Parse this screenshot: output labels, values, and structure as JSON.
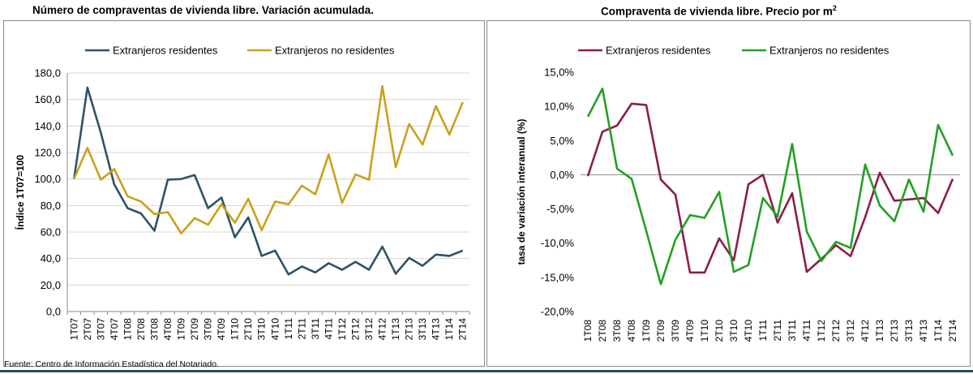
{
  "source": "Fuente: Centro de Información Estadística del Notariado.",
  "charts": [
    {
      "title": "Número de compraventas de vivienda libre. Variación acumulada.",
      "chart_data": {
        "type": "line",
        "ylabel": "Índice 1T07=100",
        "ylim": [
          0,
          180
        ],
        "yticks": [
          "0,0",
          "20,0",
          "40,0",
          "60,0",
          "80,0",
          "100,0",
          "120,0",
          "140,0",
          "160,0",
          "180,0"
        ],
        "grid": "horizontal",
        "legend": "top",
        "categories": [
          "1T07",
          "2T07",
          "3T07",
          "4T07",
          "1T08",
          "2T08",
          "3T08",
          "4T08",
          "1T09",
          "2T09",
          "3T09",
          "4T09",
          "1T10",
          "2T10",
          "3T10",
          "4T10",
          "1T11",
          "2T11",
          "3T11",
          "4T11",
          "1T12",
          "2T12",
          "3T12",
          "4T12",
          "1T13",
          "2T13",
          "3T13",
          "4T13",
          "1T14",
          "2T14"
        ],
        "series": [
          {
            "name": "Extranjeros residentes",
            "color": "#2e5366",
            "values": [
              100,
              169,
              135,
              96,
              78,
              74,
              61,
              99.5,
              100,
              103,
              78,
              86,
              56,
              71,
              42,
              46,
              28,
              34,
              29.5,
              36.5,
              31.5,
              37.5,
              31.5,
              49,
              28.5,
              40.5,
              34.5,
              43,
              42,
              46
            ]
          },
          {
            "name": "Extranjeros no residentes",
            "color": "#c9a21c",
            "values": [
              100,
              123.5,
              99.5,
              107.5,
              87,
              83,
              73.5,
              75,
              59,
              70.5,
              65.5,
              81,
              67,
              85,
              61.5,
              83,
              81,
              95,
              88.5,
              118.5,
              82,
              103.5,
              99.5,
              170,
              109,
              141.5,
              126,
              155,
              133.5,
              158
            ]
          }
        ]
      }
    },
    {
      "title": "Compraventa de vivienda libre. Precio por m",
      "title_superscript": "2",
      "chart_data": {
        "type": "line",
        "ylabel": "tasa de variación interanual (%)",
        "ylim": [
          -20,
          15
        ],
        "yticks": [
          "-20,0%",
          "-15,0%",
          "-10,0%",
          "-5,0%",
          "0,0%",
          "5,0%",
          "10,0%",
          "15,0%"
        ],
        "zero_line": true,
        "legend": "top",
        "categories": [
          "1T08",
          "2T08",
          "3T08",
          "4T08",
          "1T09",
          "2T09",
          "3T09",
          "4T09",
          "1T10",
          "2T10",
          "3T10",
          "4T10",
          "1T11",
          "2T11",
          "3T11",
          "4T11",
          "1T12",
          "2T12",
          "3T12",
          "4T12",
          "1T13",
          "2T13",
          "3T13",
          "4T13",
          "1T14",
          "2T14"
        ],
        "series": [
          {
            "name": "Extranjeros residentes",
            "color": "#8c1c4b",
            "values": [
              -0.2,
              6.3,
              7.2,
              10.4,
              10.2,
              -0.7,
              -2.9,
              -14.3,
              -14.3,
              -9.3,
              -12.5,
              -1.4,
              0,
              -7,
              -2.7,
              -14.2,
              -12.3,
              -10.3,
              -11.9,
              -6.2,
              0.3,
              -3.8,
              -3.6,
              -3.4,
              -5.6,
              -0.6
            ]
          },
          {
            "name": "Extranjeros no residentes",
            "color": "#22a022",
            "values": [
              8.5,
              12.6,
              0.9,
              -0.6,
              -8.2,
              -16,
              -9.5,
              -5.9,
              -6.3,
              -2.5,
              -14.2,
              -13.2,
              -3.4,
              -6.1,
              4.5,
              -8.3,
              -12.6,
              -9.8,
              -10.7,
              1.5,
              -4.5,
              -6.8,
              -0.7,
              -5.4,
              7.3,
              2.8
            ]
          }
        ]
      }
    }
  ]
}
